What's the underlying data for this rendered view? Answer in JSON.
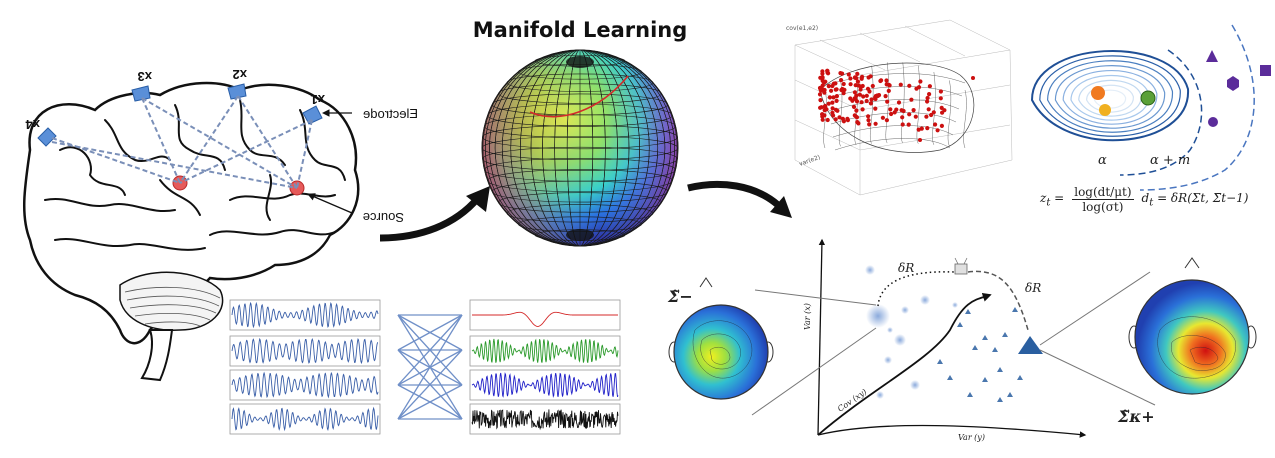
{
  "title": "Manifold Learning",
  "brain": {
    "electrodes": [
      "x1",
      "x2",
      "x3",
      "x4"
    ],
    "electrode_label": "Electrode",
    "source_label": "Source"
  },
  "scatter3d": {
    "z_axis_label": "cov(e1,e2)",
    "y_axis_label": "var(e2)"
  },
  "contour_panel": {
    "alpha_label": "α",
    "alpha_m_label": "α + m"
  },
  "formula": {
    "z_lhs": "z",
    "z_sub": "t",
    "numerator": "log(dt/μt)",
    "denominator": "log(σt)",
    "d_def": "d",
    "d_sub": "t",
    "d_rhs": "= δR(Σt, Σ̄t−1)"
  },
  "manifold_plot": {
    "sigma_minus": "Σ̃−",
    "sigma_kplus": "Σ̃κ+",
    "delta_r_left": "δR",
    "delta_r_right": "δR",
    "var_x": "Var (x)",
    "var_y": "Var (y)",
    "cov_xy": "Cov (xy)"
  },
  "colors": {
    "waveform_blue": "#3a5fa8",
    "red": "#d42a2a",
    "green": "#2a9a2a",
    "royal_blue": "#2020c8",
    "contour_dark": "#1f4f96",
    "purple": "#5b2c9a",
    "scatter_red": "#cc1010"
  }
}
